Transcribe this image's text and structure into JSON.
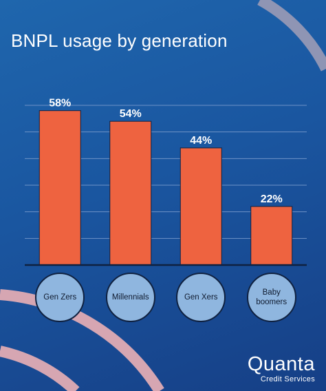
{
  "chart_data": {
    "type": "bar",
    "title": "BNPL usage by generation",
    "categories": [
      "Gen Zers",
      "Millennials",
      "Gen Xers",
      "Baby boomers"
    ],
    "values": [
      58,
      54,
      44,
      22
    ],
    "value_labels": [
      "58%",
      "54%",
      "44%",
      "22%"
    ],
    "ylim": [
      0,
      60
    ],
    "grid": true,
    "bar_color": "#ee6340"
  },
  "brand": {
    "name": "Quanta",
    "tagline": "Credit Services"
  },
  "colors": {
    "background": "#1a56a0",
    "bar": "#ee6340",
    "category_circle": "#8fb6df",
    "decor_arc_top": "#8f95b4",
    "decor_arc_bottom": "#d6a6b2"
  }
}
